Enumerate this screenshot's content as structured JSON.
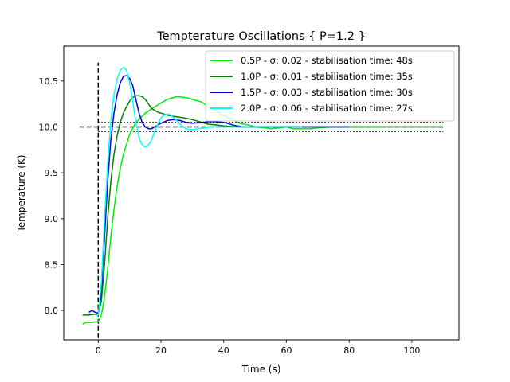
{
  "chart_data": {
    "type": "line",
    "title": "Tempterature Oscillations { P=1.2 }",
    "xlabel": "Time (s)",
    "ylabel": "Temperature (K)",
    "xlim": [
      -11,
      115
    ],
    "ylim": [
      7.68,
      10.88
    ],
    "xticks": [
      0,
      20,
      40,
      60,
      80,
      100
    ],
    "yticks": [
      8.0,
      8.5,
      9.0,
      9.5,
      10.0,
      10.5
    ],
    "xtick_labels": [
      "0",
      "20",
      "40",
      "60",
      "80",
      "100"
    ],
    "ytick_labels": [
      "8.0",
      "8.5",
      "9.0",
      "9.5",
      "10.0",
      "10.5"
    ],
    "grid": false,
    "legend_position": "top-right",
    "reference_lines": {
      "step_vertical": {
        "x": 0,
        "y_range": [
          7.7,
          10.7
        ]
      },
      "step_horizontal": {
        "y": 10.0,
        "x_range": [
          -6,
          110
        ]
      },
      "band_upper": {
        "y": 10.05,
        "x_range": [
          0,
          110
        ]
      },
      "band_lower": {
        "y": 9.95,
        "x_range": [
          0,
          110
        ]
      }
    },
    "series": [
      {
        "name": "0.5P - σ: 0.02 - stabilisation time: 48s",
        "color": "#00ee00",
        "points": [
          [
            -5,
            7.85
          ],
          [
            -4,
            7.87
          ],
          [
            -2,
            7.87
          ],
          [
            0,
            7.88
          ],
          [
            1,
            7.95
          ],
          [
            2,
            8.15
          ],
          [
            3,
            8.45
          ],
          [
            4,
            8.8
          ],
          [
            5,
            9.1
          ],
          [
            6,
            9.35
          ],
          [
            7,
            9.55
          ],
          [
            8,
            9.7
          ],
          [
            10,
            9.92
          ],
          [
            12,
            10.05
          ],
          [
            15,
            10.15
          ],
          [
            18,
            10.22
          ],
          [
            20,
            10.26
          ],
          [
            22,
            10.3
          ],
          [
            25,
            10.33
          ],
          [
            28,
            10.32
          ],
          [
            30,
            10.3
          ],
          [
            33,
            10.27
          ],
          [
            35,
            10.22
          ],
          [
            38,
            10.17
          ],
          [
            40,
            10.12
          ],
          [
            43,
            10.08
          ],
          [
            45,
            10.04
          ],
          [
            48,
            10.02
          ],
          [
            50,
            10.0
          ],
          [
            53,
            9.99
          ],
          [
            55,
            9.98
          ],
          [
            58,
            9.99
          ],
          [
            60,
            10.0
          ],
          [
            62,
            9.98
          ],
          [
            65,
            9.98
          ],
          [
            68,
            9.98
          ],
          [
            70,
            9.99
          ],
          [
            75,
            10.0
          ],
          [
            80,
            10.0
          ],
          [
            85,
            10.0
          ],
          [
            90,
            10.0
          ]
        ]
      },
      {
        "name": "1.0P - σ: 0.01 - stabilisation time: 35s",
        "color": "#008000",
        "points": [
          [
            -5,
            7.95
          ],
          [
            -3,
            7.95
          ],
          [
            -1,
            7.96
          ],
          [
            0,
            7.96
          ],
          [
            1,
            8.1
          ],
          [
            2,
            8.5
          ],
          [
            3,
            9.0
          ],
          [
            4,
            9.4
          ],
          [
            5,
            9.7
          ],
          [
            6,
            9.9
          ],
          [
            7,
            10.05
          ],
          [
            8,
            10.15
          ],
          [
            9,
            10.22
          ],
          [
            10,
            10.28
          ],
          [
            11,
            10.32
          ],
          [
            12,
            10.34
          ],
          [
            13,
            10.34
          ],
          [
            14,
            10.33
          ],
          [
            15,
            10.3
          ],
          [
            17,
            10.2
          ],
          [
            19,
            10.16
          ],
          [
            21,
            10.14
          ],
          [
            23,
            10.12
          ],
          [
            25,
            10.11
          ],
          [
            27,
            10.1
          ],
          [
            30,
            10.08
          ],
          [
            33,
            10.05
          ],
          [
            35,
            10.03
          ],
          [
            38,
            10.02
          ],
          [
            40,
            10.01
          ],
          [
            45,
            10.0
          ],
          [
            50,
            10.0
          ],
          [
            55,
            10.0
          ],
          [
            60,
            10.0
          ],
          [
            70,
            10.0
          ],
          [
            80,
            10.0
          ],
          [
            90,
            10.0
          ],
          [
            100,
            10.0
          ],
          [
            110,
            10.0
          ]
        ]
      },
      {
        "name": "1.5P - σ: 0.03 - stabilisation time: 30s",
        "color": "#0000dd",
        "points": [
          [
            -3,
            7.98
          ],
          [
            -2,
            8.0
          ],
          [
            -1,
            7.98
          ],
          [
            0,
            7.97
          ],
          [
            1,
            8.2
          ],
          [
            2,
            8.8
          ],
          [
            3,
            9.4
          ],
          [
            4,
            9.85
          ],
          [
            5,
            10.15
          ],
          [
            6,
            10.35
          ],
          [
            7,
            10.48
          ],
          [
            8,
            10.55
          ],
          [
            9,
            10.56
          ],
          [
            10,
            10.53
          ],
          [
            11,
            10.45
          ],
          [
            12,
            10.3
          ],
          [
            13,
            10.15
          ],
          [
            14,
            10.05
          ],
          [
            15,
            10.0
          ],
          [
            16,
            9.98
          ],
          [
            17,
            9.98
          ],
          [
            18,
            10.0
          ],
          [
            20,
            10.04
          ],
          [
            22,
            10.07
          ],
          [
            24,
            10.08
          ],
          [
            26,
            10.07
          ],
          [
            28,
            10.05
          ],
          [
            30,
            10.04
          ],
          [
            33,
            10.05
          ],
          [
            36,
            10.06
          ],
          [
            40,
            10.05
          ],
          [
            43,
            10.02
          ],
          [
            46,
            10.0
          ],
          [
            50,
            10.0
          ],
          [
            55,
            10.0
          ],
          [
            60,
            10.0
          ],
          [
            70,
            10.0
          ],
          [
            80,
            10.0
          ]
        ]
      },
      {
        "name": "2.0P - σ: 0.06 - stabilisation time: 27s",
        "color": "#00ffff",
        "points": [
          [
            -1,
            7.95
          ],
          [
            0,
            7.95
          ],
          [
            1,
            8.3
          ],
          [
            2,
            9.0
          ],
          [
            3,
            9.6
          ],
          [
            4,
            10.05
          ],
          [
            5,
            10.35
          ],
          [
            6,
            10.52
          ],
          [
            7,
            10.62
          ],
          [
            8,
            10.65
          ],
          [
            9,
            10.62
          ],
          [
            10,
            10.48
          ],
          [
            11,
            10.28
          ],
          [
            12,
            10.05
          ],
          [
            13,
            9.88
          ],
          [
            14,
            9.8
          ],
          [
            15,
            9.78
          ],
          [
            16,
            9.8
          ],
          [
            17,
            9.86
          ],
          [
            18,
            9.95
          ],
          [
            19,
            10.03
          ],
          [
            20,
            10.1
          ],
          [
            21,
            10.13
          ],
          [
            22,
            10.14
          ],
          [
            23,
            10.13
          ],
          [
            24,
            10.1
          ],
          [
            25,
            10.07
          ],
          [
            26,
            10.03
          ],
          [
            27,
            10.0
          ],
          [
            28,
            9.98
          ],
          [
            29,
            9.97
          ],
          [
            30,
            9.97
          ],
          [
            32,
            9.98
          ],
          [
            34,
            9.99
          ],
          [
            36,
            10.0
          ],
          [
            40,
            10.0
          ],
          [
            45,
            10.0
          ],
          [
            50,
            10.0
          ],
          [
            55,
            10.0
          ],
          [
            60,
            10.0
          ],
          [
            65,
            10.0
          ]
        ]
      }
    ]
  }
}
